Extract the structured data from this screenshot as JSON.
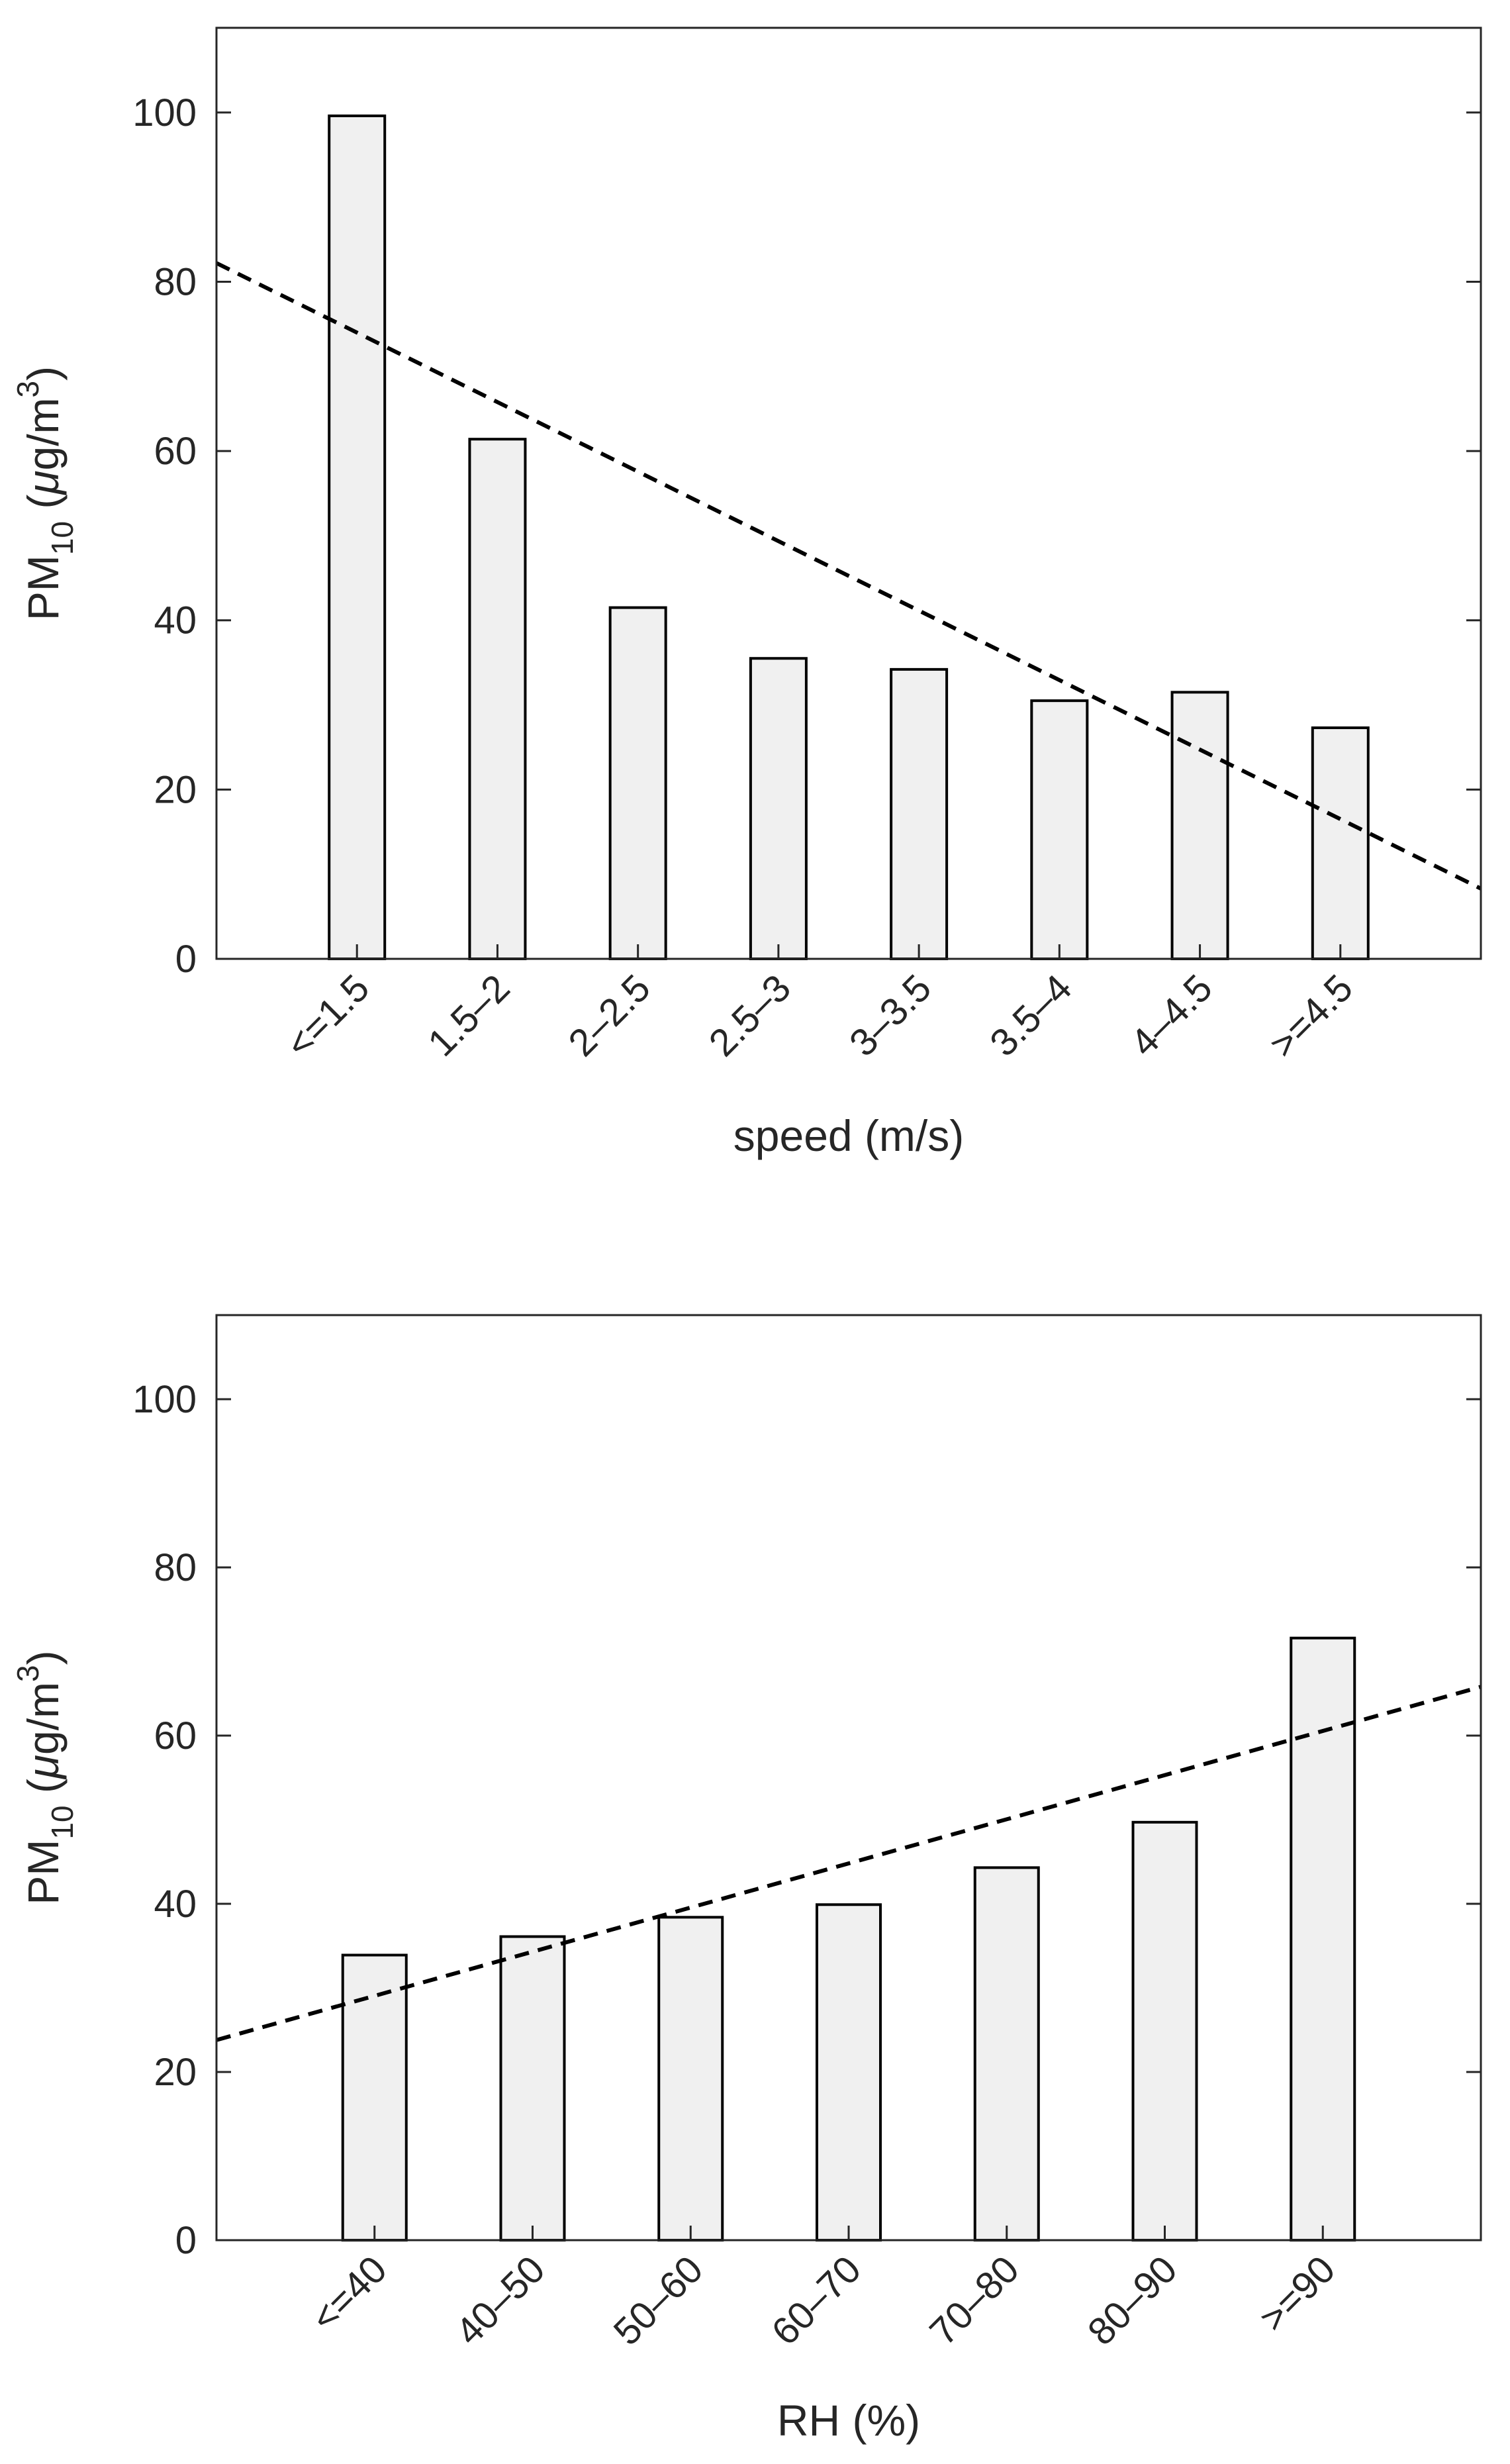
{
  "chart_data": [
    {
      "type": "bar",
      "title": "",
      "categories": [
        "<=1.5",
        "1.5–2",
        "2–2.5",
        "2.5–3",
        "3–3.5",
        "3.5–4",
        "4–4.5",
        ">=4.5"
      ],
      "values": [
        99.6,
        61.4,
        41.5,
        35.5,
        34.2,
        30.5,
        31.5,
        27.3
      ],
      "xlabel": "speed (m/s)",
      "ylabel": {
        "main": "PM",
        "sub": "10",
        "unit_open": " (",
        "mu": "μ",
        "unit_mid": "g/m",
        "sup": "3",
        "unit_close": ")"
      },
      "ylim": [
        0,
        110
      ],
      "yticks": [
        0,
        20,
        40,
        60,
        80,
        100
      ],
      "trend_line": {
        "style": "dashed",
        "y_at_left_edge": 82.2,
        "y_at_right_edge": 8.3
      }
    },
    {
      "type": "bar",
      "title": "",
      "categories": [
        "<=40",
        "40–50",
        "50–60",
        "60–70",
        "70–80",
        "80–90",
        ">=90"
      ],
      "values": [
        33.9,
        36.1,
        38.4,
        39.9,
        44.3,
        49.7,
        71.6
      ],
      "xlabel": "RH (%)",
      "ylabel": {
        "main": "PM",
        "sub": "10",
        "unit_open": " (",
        "mu": "μ",
        "unit_mid": "g/m",
        "sup": "3",
        "unit_close": ")"
      },
      "ylim": [
        0,
        110
      ],
      "yticks": [
        0,
        20,
        40,
        60,
        80,
        100
      ],
      "trend_line": {
        "style": "dashed",
        "y_at_left_edge": 23.8,
        "y_at_right_edge": 65.8
      }
    }
  ],
  "colors": {
    "bar_fill": "#f0f0f0",
    "bar_edge": "#000000",
    "axis": "#262626",
    "trend": "#000000"
  }
}
